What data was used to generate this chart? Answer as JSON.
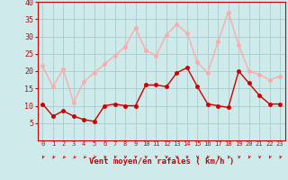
{
  "hours": [
    0,
    1,
    2,
    3,
    4,
    5,
    6,
    7,
    8,
    9,
    10,
    11,
    12,
    13,
    14,
    15,
    16,
    17,
    18,
    19,
    20,
    21,
    22,
    23
  ],
  "wind_avg": [
    10.5,
    7,
    8.5,
    7,
    6,
    5.5,
    10,
    10.5,
    10,
    10,
    16,
    16,
    15.5,
    19.5,
    21,
    15.5,
    10.5,
    10,
    9.5,
    20,
    16.5,
    13,
    10.5,
    10.5
  ],
  "wind_gust": [
    21.5,
    15.5,
    20.5,
    11,
    17,
    19.5,
    22,
    24.5,
    27,
    32.5,
    26,
    24.5,
    30.5,
    33.5,
    31,
    22.5,
    19.5,
    28.5,
    37,
    27.5,
    20,
    19,
    17.5,
    18.5
  ],
  "avg_color": "#cc0000",
  "gust_color": "#ffaaaa",
  "bg_color": "#ceeaea",
  "grid_color": "#aacccc",
  "xlabel": "Vent moyen/en rafales ( km/h )",
  "ylim": [
    0,
    40
  ],
  "yticks": [
    5,
    10,
    15,
    20,
    25,
    30,
    35,
    40
  ],
  "tick_color": "#cc0000",
  "marker_size": 2.5,
  "line_width": 1.0
}
